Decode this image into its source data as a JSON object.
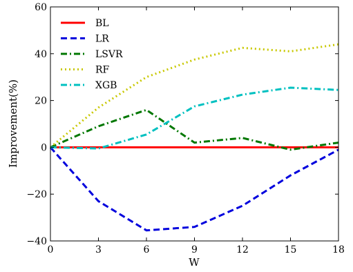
{
  "chart_data": {
    "type": "line",
    "title": "",
    "xlabel": "W",
    "ylabel": "Improvement(%)",
    "xlim": [
      0,
      18
    ],
    "ylim": [
      -40,
      60
    ],
    "xticks": [
      0,
      3,
      6,
      9,
      12,
      15,
      18
    ],
    "yticks": [
      -40,
      -20,
      0,
      20,
      40,
      60
    ],
    "ytick_labels": [
      "−40",
      "−20",
      "0",
      "20",
      "40",
      "60"
    ],
    "grid": false,
    "legend_position": "top-left",
    "x": [
      0,
      3,
      6,
      9,
      12,
      15,
      18
    ],
    "series": [
      {
        "name": "BL",
        "color": "#ff0000",
        "style": "solid",
        "values": [
          0,
          0,
          0,
          0,
          0,
          0,
          0
        ]
      },
      {
        "name": "LR",
        "color": "#0000dd",
        "style": "dashed",
        "values": [
          0,
          -23,
          -35.5,
          -34,
          -25,
          -12,
          -1
        ]
      },
      {
        "name": "LSVR",
        "color": "#007700",
        "style": "dashdot",
        "values": [
          0,
          9,
          16,
          2,
          4,
          -1,
          2
        ]
      },
      {
        "name": "RF",
        "color": "#c8c800",
        "style": "dotted",
        "values": [
          0,
          17,
          30,
          37.5,
          42.5,
          41,
          44
        ]
      },
      {
        "name": "XGB",
        "color": "#00c0c0",
        "style": "dashdot",
        "values": [
          0,
          -0.5,
          5.5,
          17.5,
          22.5,
          25.5,
          24.5
        ]
      }
    ]
  }
}
